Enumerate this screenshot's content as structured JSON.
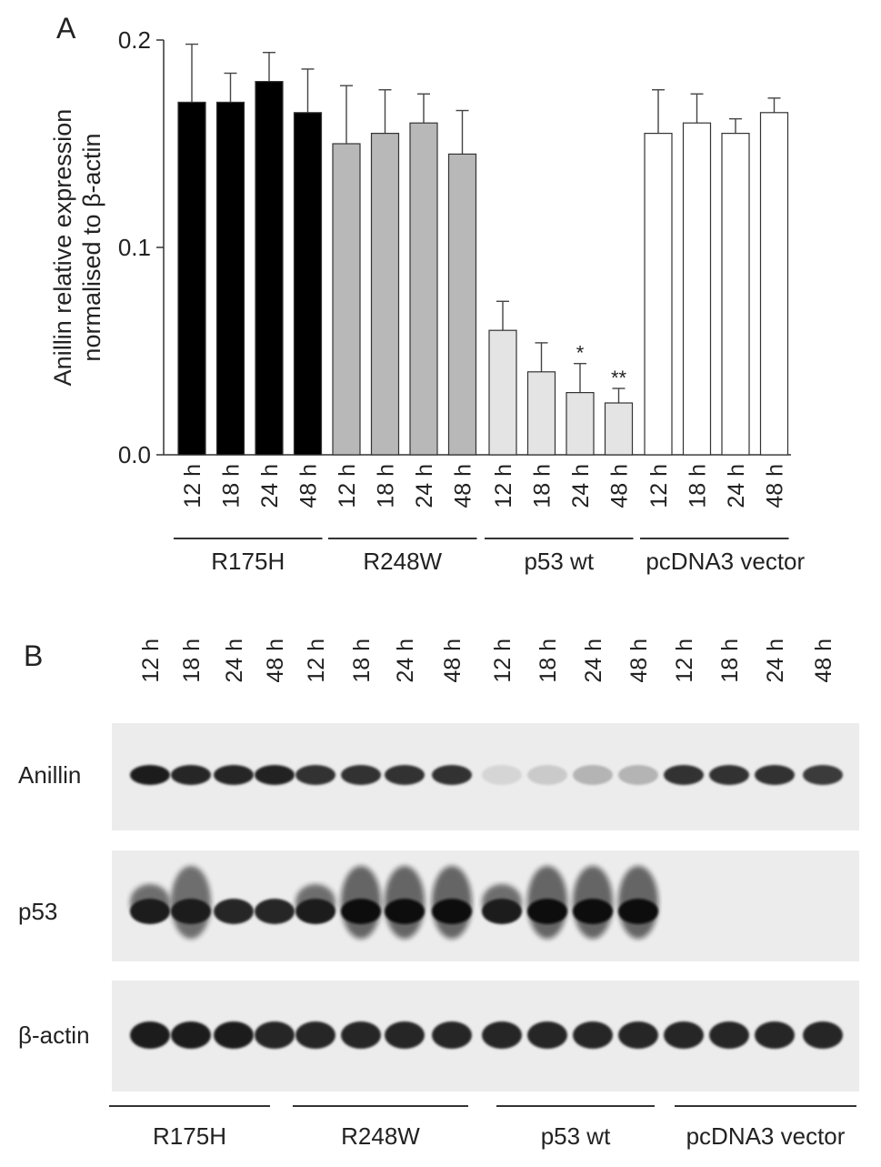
{
  "panel_a": {
    "letter": "A",
    "chart_data": {
      "type": "bar",
      "ylabel_lines": [
        "Anillin relative expression",
        "normalised to β-actin"
      ],
      "ylim": [
        0,
        0.2
      ],
      "yticks": [
        "0.0",
        "0.1",
        "0.2"
      ],
      "ytick_values": [
        0,
        0.1,
        0.2
      ],
      "categories": [
        "12 h",
        "18 h",
        "24 h",
        "48 h"
      ],
      "groups": [
        {
          "name": "R175H",
          "color": "#000000",
          "values": [
            0.17,
            0.17,
            0.18,
            0.165
          ],
          "errors": [
            0.028,
            0.014,
            0.014,
            0.021
          ],
          "marks": [
            "",
            "",
            "",
            ""
          ]
        },
        {
          "name": "R248W",
          "color": "#b8b8b8",
          "values": [
            0.15,
            0.155,
            0.16,
            0.145
          ],
          "errors": [
            0.028,
            0.021,
            0.014,
            0.021
          ],
          "marks": [
            "",
            "",
            "",
            ""
          ]
        },
        {
          "name": "p53 wt",
          "color": "#e4e4e4",
          "values": [
            0.06,
            0.04,
            0.03,
            0.025
          ],
          "errors": [
            0.014,
            0.014,
            0.014,
            0.007
          ],
          "marks": [
            "",
            "",
            "*",
            "**"
          ]
        },
        {
          "name": "pcDNA3 vector",
          "color": "#ffffff",
          "values": [
            0.155,
            0.16,
            0.155,
            0.165
          ],
          "errors": [
            0.021,
            0.014,
            0.007,
            0.007
          ],
          "marks": [
            "",
            "",
            "",
            ""
          ]
        }
      ]
    }
  },
  "panel_b": {
    "letter": "B",
    "lanes": [
      "12 h",
      "18 h",
      "24 h",
      "48 h",
      "12 h",
      "18 h",
      "24 h",
      "48 h",
      "12 h",
      "18 h",
      "24 h",
      "48 h",
      "12 h",
      "18 h",
      "24 h",
      "48 h"
    ],
    "rows": [
      {
        "label": "Anillin",
        "band_intensity": [
          0.95,
          0.9,
          0.9,
          0.92,
          0.85,
          0.85,
          0.85,
          0.85,
          0.1,
          0.15,
          0.25,
          0.25,
          0.85,
          0.85,
          0.85,
          0.8
        ]
      },
      {
        "label": "p53",
        "band_intensity": [
          0.95,
          0.95,
          0.9,
          0.9,
          0.95,
          1,
          1,
          1,
          0.95,
          1,
          1,
          1,
          0,
          0,
          0,
          0
        ]
      },
      {
        "label": "β-actin",
        "band_intensity": [
          0.95,
          0.95,
          0.95,
          0.9,
          0.9,
          0.9,
          0.9,
          0.9,
          0.9,
          0.9,
          0.9,
          0.9,
          0.9,
          0.9,
          0.9,
          0.9
        ]
      }
    ],
    "groups": [
      "R175H",
      "R248W",
      "p53 wt",
      "pcDNA3 vector"
    ]
  }
}
